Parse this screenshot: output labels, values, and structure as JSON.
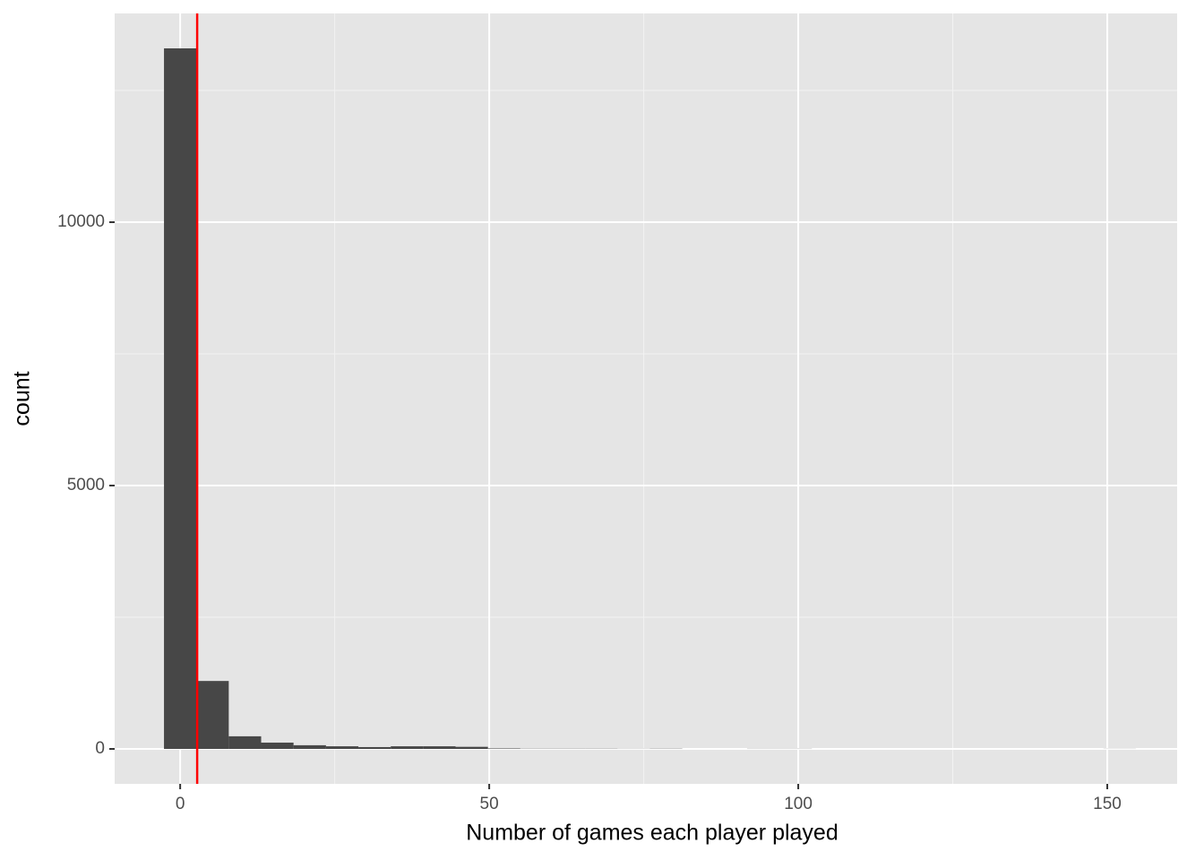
{
  "chart_data": {
    "type": "histogram",
    "x_label": "Number of games each player played",
    "y_label": "count",
    "bins": [
      -2.62,
      2.62,
      7.86,
      13.1,
      18.34,
      23.59,
      28.83,
      34.07,
      39.31,
      44.55,
      49.79,
      55.03,
      60.28,
      65.52,
      70.76,
      76.0,
      81.24,
      86.48,
      91.72,
      96.97,
      102.21,
      107.45,
      112.69,
      117.93,
      123.17,
      128.41,
      133.66,
      138.9,
      144.14,
      149.38,
      154.62
    ],
    "values": [
      13300,
      1290,
      240,
      120,
      70,
      50,
      35,
      50,
      50,
      40,
      10,
      5,
      5,
      5,
      3,
      5,
      0,
      0,
      3,
      3,
      0,
      0,
      0,
      0,
      0,
      0,
      0,
      0,
      0,
      2
    ],
    "color": "#474747",
    "vline": {
      "value": 2.75,
      "color": "#ff0000"
    },
    "xlim": [
      -10.6,
      161.3
    ],
    "xticks": [
      0,
      50,
      100,
      150
    ],
    "x_minor_ticks": [
      25,
      75,
      125
    ],
    "ylim": [
      -663,
      13963
    ],
    "yticks": [
      0,
      5000,
      10000
    ],
    "y_minor_ticks": [
      2500,
      7500,
      12500
    ],
    "grid": true
  }
}
